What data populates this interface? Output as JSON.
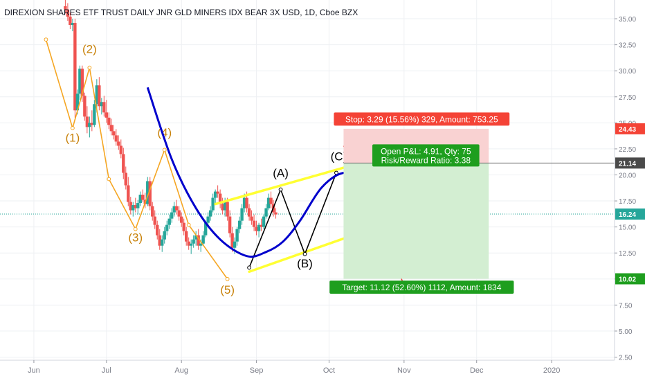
{
  "chart_data": {
    "type": "candlestick",
    "title": "DIREXION SHARES ETF TRUST DAILY JNR GLD MINERS IDX BEAR 3X USD, 1D, Cboe BZX",
    "y_ticks": [
      "35.00",
      "32.50",
      "30.00",
      "27.50",
      "25.00",
      "22.50",
      "20.00",
      "17.50",
      "15.00",
      "12.50",
      "10.00",
      "7.50",
      "5.00",
      "2.50"
    ],
    "y_tick_values": [
      35,
      32.5,
      30,
      27.5,
      25,
      22.5,
      20,
      17.5,
      15,
      12.5,
      10,
      7.5,
      5,
      2.5
    ],
    "ylim": [
      2.2,
      36.8
    ],
    "x_ticks": [
      "Jun",
      "Jul",
      "Aug",
      "Sep",
      "Oct",
      "Nov",
      "Dec",
      "2020"
    ],
    "x_tick_days": [
      0,
      30,
      61,
      92,
      122,
      153,
      183,
      214
    ],
    "xlim_days": [
      -14,
      240
    ],
    "candles": {
      "start_day": 13,
      "fields": [
        "open",
        "high",
        "low",
        "close"
      ],
      "ohlc": [
        [
          36.2,
          37.0,
          35.5,
          35.9
        ],
        [
          35.9,
          36.5,
          34.8,
          35.2
        ],
        [
          35.2,
          35.6,
          34.0,
          34.4
        ],
        [
          34.4,
          35.0,
          33.8,
          34.6
        ],
        [
          34.6,
          35.0,
          25.5,
          26.2
        ],
        [
          26.2,
          28.2,
          25.8,
          27.8
        ],
        [
          27.8,
          30.5,
          27.2,
          30.2
        ],
        [
          30.2,
          30.5,
          27.0,
          27.6
        ],
        [
          27.6,
          27.9,
          25.2,
          25.6
        ],
        [
          25.6,
          26.6,
          24.0,
          24.6
        ],
        [
          24.6,
          25.6,
          23.6,
          25.0
        ],
        [
          25.0,
          26.2,
          24.2,
          24.8
        ],
        [
          24.8,
          27.2,
          24.6,
          26.8
        ],
        [
          26.8,
          29.2,
          26.0,
          28.6
        ],
        [
          28.6,
          29.4,
          26.2,
          26.6
        ],
        [
          26.6,
          27.4,
          25.8,
          27.0
        ],
        [
          27.0,
          27.6,
          25.6,
          26.0
        ],
        [
          26.0,
          27.2,
          25.0,
          25.5
        ],
        [
          25.5,
          26.0,
          24.4,
          24.8
        ],
        [
          24.8,
          25.4,
          23.8,
          24.2
        ],
        [
          24.2,
          24.8,
          23.4,
          23.8
        ],
        [
          23.8,
          24.4,
          22.8,
          23.2
        ],
        [
          23.2,
          23.8,
          22.4,
          22.8
        ],
        [
          22.8,
          23.4,
          21.6,
          22.0
        ],
        [
          22.0,
          22.6,
          19.6,
          20.2
        ],
        [
          20.2,
          20.8,
          18.6,
          19.0
        ],
        [
          19.0,
          19.8,
          17.0,
          17.4
        ],
        [
          17.4,
          17.9,
          16.2,
          16.6
        ],
        [
          16.6,
          17.4,
          16.0,
          17.1
        ],
        [
          17.1,
          17.8,
          16.4,
          16.8
        ],
        [
          16.8,
          17.6,
          16.2,
          17.3
        ],
        [
          17.3,
          18.4,
          17.0,
          18.1
        ],
        [
          18.1,
          18.6,
          17.4,
          17.6
        ],
        [
          17.6,
          18.3,
          16.8,
          17.2
        ],
        [
          17.2,
          19.8,
          17.0,
          19.4
        ],
        [
          19.4,
          19.8,
          16.6,
          17.0
        ],
        [
          17.0,
          17.4,
          15.6,
          16.0
        ],
        [
          16.0,
          16.6,
          14.8,
          15.2
        ],
        [
          15.2,
          15.6,
          13.8,
          14.2
        ],
        [
          14.2,
          14.8,
          12.8,
          13.2
        ],
        [
          13.2,
          14.2,
          12.6,
          13.8
        ],
        [
          13.8,
          15.0,
          13.4,
          14.6
        ],
        [
          14.6,
          15.6,
          14.2,
          15.2
        ],
        [
          15.2,
          16.2,
          14.8,
          15.8
        ],
        [
          15.8,
          16.8,
          15.4,
          16.4
        ],
        [
          16.4,
          17.4,
          16.0,
          17.0
        ],
        [
          17.0,
          17.6,
          16.2,
          16.6
        ],
        [
          16.6,
          17.0,
          15.6,
          16.0
        ],
        [
          16.0,
          16.4,
          15.0,
          15.4
        ],
        [
          15.4,
          15.8,
          14.2,
          14.6
        ],
        [
          14.6,
          15.0,
          13.2,
          13.6
        ],
        [
          13.6,
          14.0,
          12.8,
          13.2
        ],
        [
          13.2,
          13.8,
          12.4,
          13.4
        ],
        [
          13.4,
          14.2,
          13.0,
          13.8
        ],
        [
          13.8,
          14.6,
          13.2,
          14.2
        ],
        [
          14.2,
          14.8,
          12.8,
          13.2
        ],
        [
          13.2,
          13.8,
          12.6,
          13.4
        ],
        [
          13.4,
          14.6,
          13.2,
          14.2
        ],
        [
          14.2,
          15.6,
          14.0,
          15.4
        ],
        [
          15.4,
          16.4,
          15.0,
          16.0
        ],
        [
          16.0,
          17.0,
          15.6,
          16.6
        ],
        [
          16.6,
          18.2,
          16.4,
          17.8
        ],
        [
          17.8,
          18.6,
          17.2,
          18.4
        ],
        [
          18.4,
          19.0,
          17.8,
          18.2
        ],
        [
          18.2,
          18.6,
          16.8,
          17.2
        ],
        [
          17.2,
          17.8,
          16.2,
          16.6
        ],
        [
          16.6,
          17.8,
          16.0,
          17.4
        ],
        [
          17.4,
          17.8,
          15.6,
          16.0
        ],
        [
          16.0,
          16.6,
          14.0,
          14.4
        ],
        [
          14.4,
          15.0,
          12.6,
          13.0
        ],
        [
          13.0,
          14.0,
          12.4,
          13.6
        ],
        [
          13.6,
          15.0,
          13.2,
          14.8
        ],
        [
          14.8,
          16.0,
          14.4,
          15.6
        ],
        [
          15.6,
          17.2,
          15.2,
          16.8
        ],
        [
          16.8,
          18.2,
          16.4,
          17.8
        ],
        [
          17.8,
          18.4,
          16.4,
          16.8
        ],
        [
          16.8,
          17.2,
          15.6,
          16.0
        ],
        [
          16.0,
          16.6,
          15.2,
          15.6
        ],
        [
          15.6,
          16.2,
          14.6,
          15.0
        ],
        [
          15.0,
          15.6,
          14.2,
          14.6
        ],
        [
          14.6,
          15.4,
          14.0,
          15.2
        ],
        [
          15.2,
          15.8,
          14.6,
          15.0
        ],
        [
          15.0,
          16.2,
          14.8,
          16.0
        ],
        [
          16.0,
          17.2,
          15.8,
          16.8
        ],
        [
          16.8,
          18.2,
          16.6,
          17.8
        ],
        [
          17.8,
          18.4,
          16.8,
          17.2
        ],
        [
          17.2,
          17.6,
          16.0,
          16.4
        ],
        [
          16.4,
          16.8,
          15.8,
          16.2
        ]
      ]
    },
    "elliott_impulse": {
      "points": [
        [
          5,
          33.0
        ],
        [
          16,
          24.5
        ],
        [
          23,
          30.3
        ],
        [
          31,
          19.6
        ],
        [
          42,
          14.8
        ],
        [
          54,
          22.4
        ],
        [
          64,
          15.2
        ],
        [
          80,
          10.0
        ]
      ],
      "labels": [
        {
          "text": "(1)",
          "day": 16,
          "price": 23.2
        },
        {
          "text": "(2)",
          "day": 23,
          "price": 31.7
        },
        {
          "text": "(3)",
          "day": 42,
          "price": 13.6
        },
        {
          "text": "(4)",
          "day": 54,
          "price": 23.7
        },
        {
          "text": "(5)",
          "day": 80,
          "price": 8.6
        }
      ],
      "color": "#f5a623"
    },
    "corrective_wave": {
      "points": [
        [
          89,
          11.1
        ],
        [
          102,
          18.6
        ],
        [
          112,
          12.4
        ],
        [
          125,
          20.2
        ]
      ],
      "labels": [
        {
          "text": "(A)",
          "day": 102,
          "price": 19.8
        },
        {
          "text": "(B)",
          "day": 112,
          "price": 11.1
        },
        {
          "text": "(C)",
          "day": 126,
          "price": 21.4
        }
      ],
      "color": "#000000"
    },
    "channel": {
      "upper": [
        [
          75,
          17.2
        ],
        [
          160,
          22.8
        ]
      ],
      "lower": [
        [
          89,
          10.7
        ],
        [
          160,
          16.5
        ]
      ],
      "color": "#ffff33"
    },
    "arc_points": [
      [
        47,
        28.4
      ],
      [
        57,
        21.5
      ],
      [
        67,
        16.8
      ],
      [
        77,
        13.8
      ],
      [
        88,
        12.2
      ],
      [
        96,
        12.6
      ],
      [
        103,
        13.6
      ],
      [
        110,
        15.6
      ],
      [
        119,
        18.8
      ],
      [
        128,
        20.2
      ],
      [
        137,
        19.6
      ],
      [
        145,
        17.6
      ],
      [
        150,
        15.2
      ],
      [
        155,
        11.6
      ],
      [
        158,
        10.8
      ]
    ],
    "arc_color": "#0000cc",
    "projection": {
      "from": [
        128,
        22.8
      ],
      "to": [
        154,
        8.9
      ],
      "color": "#e53935"
    },
    "position": {
      "start_day": 128,
      "end_day": 188,
      "stop_price": 24.43,
      "entry_price": 21.14,
      "target_price": 10.02,
      "stop_label": "Stop: 3.29 (15.56%) 329, Amount: 753.25",
      "pnl_label": "Open P&L: 4.91, Qty: 75",
      "rr_label": "Risk/Reward Ratio: 3.38",
      "target_label": "Target: 11.12 (52.60%) 1112, Amount: 1834",
      "stop_fill": "#f9d2d2",
      "target_fill": "#d3eed2",
      "stop_color": "#f44336",
      "target_color": "#1e9e1e"
    },
    "current_price": 16.24,
    "price_tags": [
      {
        "text": "24.43",
        "price": 24.43,
        "color": "#f44336"
      },
      {
        "text": "21.14",
        "price": 21.14,
        "color": "#4a4a4a"
      },
      {
        "text": "16.24",
        "price": 16.24,
        "color": "#26a69a"
      },
      {
        "text": "10.02",
        "price": 10.02,
        "color": "#1e9e1e"
      }
    ],
    "colors": {
      "up": "#26a69a",
      "down": "#ef5350",
      "grid": "#eef0f3",
      "axis_text": "#787b86"
    }
  }
}
